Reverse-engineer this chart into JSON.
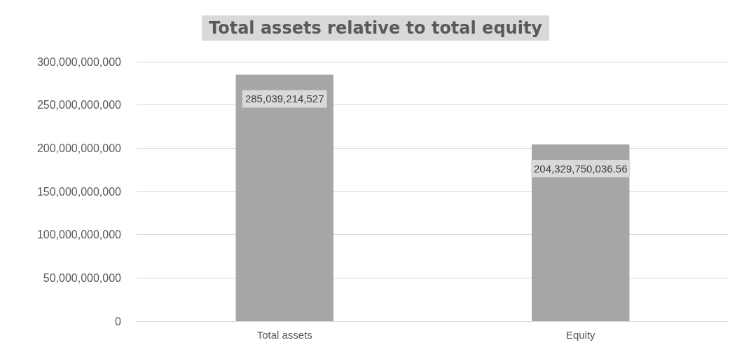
{
  "chart_data": {
    "type": "bar",
    "title": "Total assets relative to total equity",
    "categories": [
      "Total assets",
      "Equity"
    ],
    "values": [
      285039214527,
      204329750036.56
    ],
    "value_labels": [
      "285,039,214,527",
      "204,329,750,036.56"
    ],
    "color": "#a6a6a6",
    "ylim": [
      0,
      300000000000
    ],
    "yticks": [
      0,
      {
        "value": 50000000000,
        "label": "50,000,000,000"
      },
      {
        "value": 100000000000,
        "label": "100,000,000,000"
      },
      {
        "value": 150000000000,
        "label": "150,000,000,000"
      },
      {
        "value": 200000000000,
        "label": "200,000,000,000"
      },
      {
        "value": 250000000000,
        "label": "250,000,000,000"
      },
      {
        "value": 300000000000,
        "label": "300,000,000,000"
      }
    ],
    "grid": "y"
  }
}
